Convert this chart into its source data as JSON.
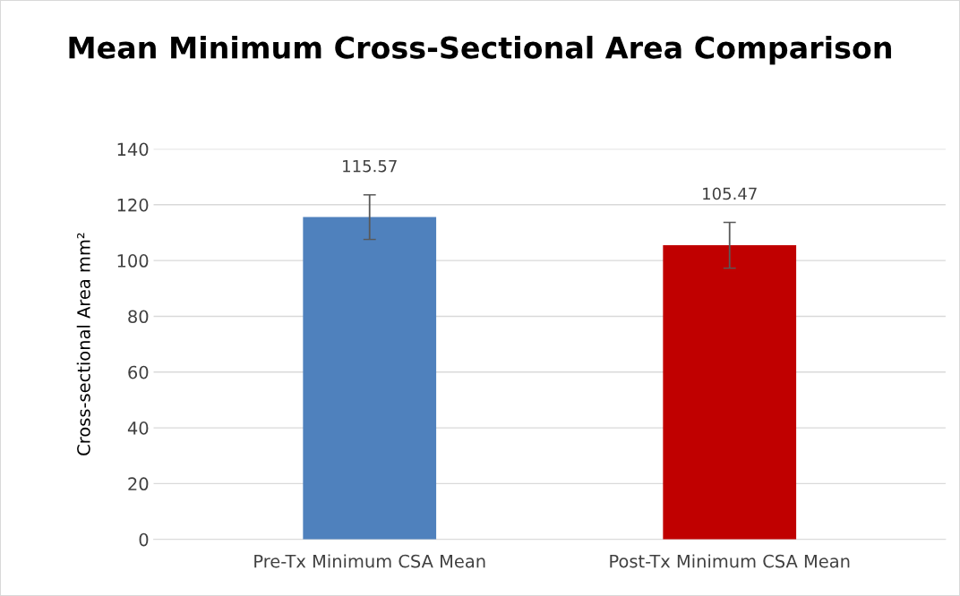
{
  "chart_data": {
    "type": "bar",
    "title": "Mean Minimum Cross-Sectional Area Comparison",
    "ylabel": "Cross-sectional Area mm²",
    "categories": [
      "Pre-Tx Minimum CSA Mean",
      "Post-Tx Minimum CSA Mean"
    ],
    "values": [
      115.57,
      105.47
    ],
    "colors": [
      "#4f81bd",
      "#c00000"
    ],
    "errors": [
      8,
      8.2
    ],
    "data_labels": true,
    "ylim": [
      0,
      140
    ],
    "yticks": [
      0,
      20,
      40,
      60,
      80,
      100,
      120,
      140
    ],
    "grid": "y",
    "legend": false
  }
}
